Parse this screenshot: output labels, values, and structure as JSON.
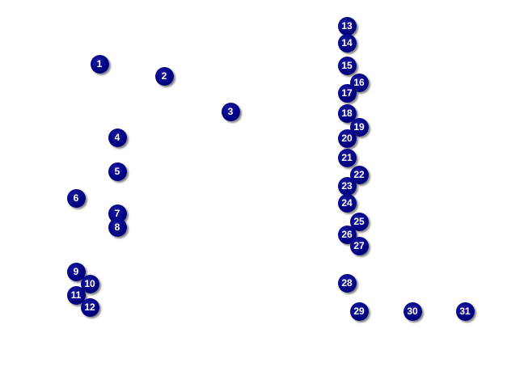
{
  "marker_color": "#000080",
  "marker_text_color": "#ffffff",
  "markers": [
    {
      "label": "1"
    },
    {
      "label": "2"
    },
    {
      "label": "3"
    },
    {
      "label": "4"
    },
    {
      "label": "5"
    },
    {
      "label": "6"
    },
    {
      "label": "7"
    },
    {
      "label": "8"
    },
    {
      "label": "9"
    },
    {
      "label": "10"
    },
    {
      "label": "11"
    },
    {
      "label": "12"
    },
    {
      "label": "13"
    },
    {
      "label": "14"
    },
    {
      "label": "15"
    },
    {
      "label": "16"
    },
    {
      "label": "17"
    },
    {
      "label": "18"
    },
    {
      "label": "19"
    },
    {
      "label": "20"
    },
    {
      "label": "21"
    },
    {
      "label": "22"
    },
    {
      "label": "23"
    },
    {
      "label": "24"
    },
    {
      "label": "25"
    },
    {
      "label": "26"
    },
    {
      "label": "27"
    },
    {
      "label": "28"
    },
    {
      "label": "29"
    },
    {
      "label": "30"
    },
    {
      "label": "31"
    }
  ]
}
